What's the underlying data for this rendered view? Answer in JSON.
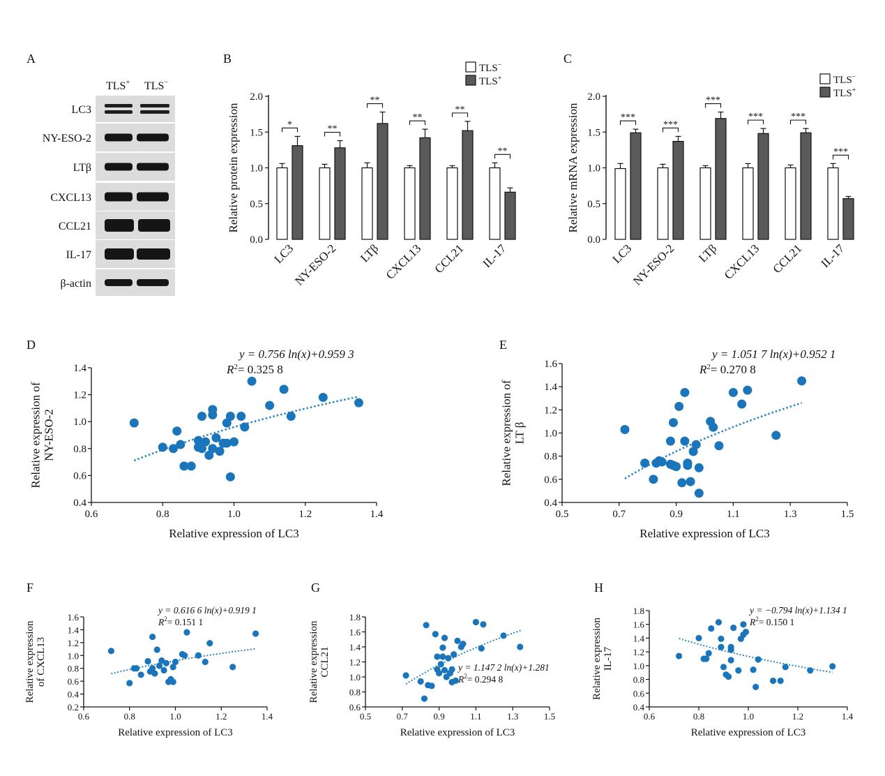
{
  "panels": {
    "A": "A",
    "B": "B",
    "C": "C",
    "D": "D",
    "E": "E",
    "F": "F",
    "G": "G",
    "H": "H"
  },
  "blot": {
    "col_labels": [
      {
        "base": "TLS",
        "sup": "+"
      },
      {
        "base": "TLS",
        "sup": "−"
      }
    ],
    "rows": [
      "LC3",
      "NY-ESO-2",
      "LTβ",
      "CXCL13",
      "CCL21",
      "IL-17",
      "β-actin"
    ]
  },
  "colors": {
    "bar_neg": "#ffffff",
    "bar_pos": "#5a5a5a",
    "scatter": "#1b75bb",
    "trend": "#2a86c9"
  },
  "chart_data": [
    {
      "id": "B",
      "type": "bar",
      "ylabel": "Relative protein expression",
      "ylim": [
        0,
        2.0
      ],
      "yticks": [
        "0.0",
        "0.5",
        "1.0",
        "1.5",
        "2.0"
      ],
      "categories": [
        "LC3",
        "NY-ESO-2",
        "LTβ",
        "CXCL13",
        "CCL21",
        "IL-17"
      ],
      "series": [
        {
          "name": "TLS−",
          "legend_base": "TLS",
          "legend_sup": "−",
          "values": [
            1.0,
            1.0,
            1.0,
            1.0,
            1.0,
            1.0
          ],
          "errors": [
            0.06,
            0.05,
            0.07,
            0.03,
            0.03,
            0.07
          ]
        },
        {
          "name": "TLS+",
          "legend_base": "TLS",
          "legend_sup": "+",
          "values": [
            1.31,
            1.28,
            1.62,
            1.42,
            1.52,
            0.66
          ],
          "errors": [
            0.13,
            0.1,
            0.16,
            0.12,
            0.13,
            0.06
          ]
        }
      ],
      "significance": [
        "*",
        "**",
        "**",
        "**",
        "**",
        "**"
      ],
      "legend": "top-right"
    },
    {
      "id": "C",
      "type": "bar",
      "ylabel": "Relative mRNA expression",
      "ylim": [
        0,
        2.0
      ],
      "yticks": [
        "0.0",
        "0.5",
        "1.0",
        "1.5",
        "2.0"
      ],
      "categories": [
        "LC3",
        "NY-ESO-2",
        "LTβ",
        "CXCL13",
        "CCL21",
        "IL-17"
      ],
      "series": [
        {
          "name": "TLS−",
          "legend_base": "TLS",
          "legend_sup": "−",
          "values": [
            0.99,
            1.0,
            1.0,
            1.0,
            1.0,
            1.0
          ],
          "errors": [
            0.07,
            0.05,
            0.03,
            0.06,
            0.04,
            0.06
          ]
        },
        {
          "name": "TLS+",
          "legend_base": "TLS",
          "legend_sup": "+",
          "values": [
            1.49,
            1.37,
            1.69,
            1.48,
            1.49,
            0.57
          ],
          "errors": [
            0.05,
            0.07,
            0.09,
            0.07,
            0.06,
            0.03
          ]
        }
      ],
      "significance": [
        "***",
        "***",
        "***",
        "***",
        "***",
        "***"
      ],
      "legend": "top-right"
    },
    {
      "id": "D",
      "type": "scatter",
      "xlabel": "Relative expression of LC3",
      "ylabel_lines": [
        "Relative expression of",
        "NY-ESO-2"
      ],
      "xlim": [
        0.6,
        1.4
      ],
      "ylim": [
        0.4,
        1.4
      ],
      "xticks": [
        "0.6",
        "0.8",
        "1.0",
        "1.2",
        "1.4"
      ],
      "yticks": [
        "0.4",
        "0.6",
        "0.8",
        "1.0",
        "1.2",
        "1.4"
      ],
      "equation": "y = 0.756 ln(x)+0.959 3",
      "r2_value": "= 0.325 8",
      "fit": {
        "a": 0.756,
        "b": 0.9593,
        "x_from": 0.72,
        "x_to": 1.35
      },
      "points": [
        [
          0.72,
          0.99
        ],
        [
          0.8,
          0.81
        ],
        [
          0.83,
          0.8
        ],
        [
          0.84,
          0.93
        ],
        [
          0.85,
          0.83
        ],
        [
          0.86,
          0.67
        ],
        [
          0.88,
          0.67
        ],
        [
          0.9,
          0.86
        ],
        [
          0.9,
          0.81
        ],
        [
          0.91,
          1.04
        ],
        [
          0.91,
          0.8
        ],
        [
          0.92,
          0.85
        ],
        [
          0.93,
          0.75
        ],
        [
          0.94,
          0.8
        ],
        [
          0.94,
          1.09
        ],
        [
          0.94,
          1.05
        ],
        [
          0.95,
          0.88
        ],
        [
          0.96,
          0.78
        ],
        [
          0.97,
          0.84
        ],
        [
          0.98,
          0.99
        ],
        [
          0.98,
          0.84
        ],
        [
          0.99,
          0.59
        ],
        [
          0.99,
          1.04
        ],
        [
          1.0,
          0.85
        ],
        [
          1.02,
          1.04
        ],
        [
          1.03,
          0.96
        ],
        [
          1.05,
          1.3
        ],
        [
          1.1,
          1.12
        ],
        [
          1.14,
          1.24
        ],
        [
          1.16,
          1.04
        ],
        [
          1.25,
          1.18
        ],
        [
          1.35,
          1.14
        ]
      ]
    },
    {
      "id": "E",
      "type": "scatter",
      "xlabel": "Relative expression of LC3",
      "ylabel_lines": [
        "Relative expression of",
        "LT β"
      ],
      "xlim": [
        0.5,
        1.5
      ],
      "ylim": [
        0.4,
        1.6
      ],
      "xticks": [
        "0.5",
        "0.7",
        "0.9",
        "1.1",
        "1.3",
        "1.5"
      ],
      "yticks": [
        "0.4",
        "0.6",
        "0.8",
        "1.0",
        "1.2",
        "1.4",
        "1.6"
      ],
      "equation": "y = 1.051 7 ln(x)+0.952 1",
      "r2_value": "= 0.270 8",
      "fit": {
        "a": 1.0517,
        "b": 0.9521,
        "x_from": 0.72,
        "x_to": 1.34
      },
      "points": [
        [
          0.72,
          1.03
        ],
        [
          0.79,
          0.74
        ],
        [
          0.82,
          0.6
        ],
        [
          0.83,
          0.74
        ],
        [
          0.84,
          0.76
        ],
        [
          0.85,
          0.75
        ],
        [
          0.88,
          0.93
        ],
        [
          0.88,
          0.73
        ],
        [
          0.89,
          0.72
        ],
        [
          0.89,
          1.09
        ],
        [
          0.9,
          0.71
        ],
        [
          0.91,
          1.23
        ],
        [
          0.92,
          0.57
        ],
        [
          0.93,
          1.35
        ],
        [
          0.93,
          0.93
        ],
        [
          0.94,
          0.74
        ],
        [
          0.94,
          0.72
        ],
        [
          0.95,
          0.58
        ],
        [
          0.96,
          0.84
        ],
        [
          0.97,
          0.9
        ],
        [
          0.98,
          0.48
        ],
        [
          0.98,
          0.7
        ],
        [
          1.02,
          1.1
        ],
        [
          1.03,
          1.05
        ],
        [
          1.05,
          0.89
        ],
        [
          1.1,
          1.35
        ],
        [
          1.13,
          1.25
        ],
        [
          1.15,
          1.37
        ],
        [
          1.25,
          0.98
        ],
        [
          1.34,
          1.45
        ]
      ]
    },
    {
      "id": "F",
      "type": "scatter",
      "xlabel": "Relative expression of LC3",
      "ylabel_lines": [
        "Relative expression",
        "of CXCL13"
      ],
      "xlim": [
        0.6,
        1.4
      ],
      "ylim": [
        0.2,
        1.6
      ],
      "xticks": [
        "0.6",
        "0.8",
        "1.0",
        "1.2",
        "1.4"
      ],
      "yticks": [
        "0.2",
        "0.4",
        "0.6",
        "0.8",
        "1.0",
        "1.2",
        "1.4",
        "1.6"
      ],
      "equation": "y = 0.616 6 ln(x)+0.919 1",
      "r2_value": "= 0.151 1",
      "fit": {
        "a": 0.6166,
        "b": 0.9191,
        "x_from": 0.72,
        "x_to": 1.35
      },
      "points": [
        [
          0.72,
          1.07
        ],
        [
          0.8,
          0.57
        ],
        [
          0.82,
          0.8
        ],
        [
          0.83,
          0.8
        ],
        [
          0.85,
          0.7
        ],
        [
          0.88,
          0.91
        ],
        [
          0.89,
          0.75
        ],
        [
          0.9,
          0.8
        ],
        [
          0.9,
          1.29
        ],
        [
          0.91,
          0.72
        ],
        [
          0.92,
          1.09
        ],
        [
          0.93,
          0.84
        ],
        [
          0.94,
          0.92
        ],
        [
          0.95,
          0.77
        ],
        [
          0.96,
          0.88
        ],
        [
          0.97,
          0.59
        ],
        [
          0.98,
          0.63
        ],
        [
          0.99,
          0.59
        ],
        [
          0.99,
          0.82
        ],
        [
          1.0,
          0.9
        ],
        [
          1.03,
          1.02
        ],
        [
          1.04,
          1.0
        ],
        [
          1.05,
          1.36
        ],
        [
          1.1,
          1.0
        ],
        [
          1.13,
          0.9
        ],
        [
          1.15,
          1.19
        ],
        [
          1.25,
          0.82
        ],
        [
          1.35,
          1.34
        ]
      ]
    },
    {
      "id": "G",
      "type": "scatter",
      "xlabel": "Relative expression of LC3",
      "ylabel_lines": [
        "Relative expression",
        "CCL21"
      ],
      "xlim": [
        0.5,
        1.5
      ],
      "ylim": [
        0.6,
        1.8
      ],
      "xticks": [
        "0.5",
        "0.7",
        "0.9",
        "1.1",
        "1.3",
        "1.5"
      ],
      "yticks": [
        "0.6",
        "0.8",
        "1.0",
        "1.2",
        "1.4",
        "1.6",
        "1.8"
      ],
      "equation": "y = 1.147 2 ln(x)+1.281",
      "r2_value": "= 0.294 8",
      "fit": {
        "a": 1.1472,
        "b": 1.281,
        "x_from": 0.72,
        "x_to": 1.35
      },
      "points": [
        [
          0.72,
          1.02
        ],
        [
          0.8,
          0.94
        ],
        [
          0.82,
          0.71
        ],
        [
          0.83,
          1.69
        ],
        [
          0.84,
          0.89
        ],
        [
          0.86,
          0.88
        ],
        [
          0.88,
          1.57
        ],
        [
          0.89,
          1.1
        ],
        [
          0.89,
          1.27
        ],
        [
          0.9,
          1.05
        ],
        [
          0.91,
          1.17
        ],
        [
          0.92,
          1.27
        ],
        [
          0.92,
          1.39
        ],
        [
          0.93,
          1.52
        ],
        [
          0.93,
          1.09
        ],
        [
          0.94,
          1.0
        ],
        [
          0.95,
          1.25
        ],
        [
          0.96,
          1.05
        ],
        [
          0.97,
          1.1
        ],
        [
          0.97,
          0.93
        ],
        [
          0.98,
          1.3
        ],
        [
          0.99,
          0.95
        ],
        [
          1.0,
          1.48
        ],
        [
          1.02,
          1.4
        ],
        [
          1.03,
          1.44
        ],
        [
          1.1,
          1.73
        ],
        [
          1.13,
          1.38
        ],
        [
          1.14,
          1.7
        ],
        [
          1.25,
          1.55
        ],
        [
          1.34,
          1.4
        ]
      ]
    },
    {
      "id": "H",
      "type": "scatter",
      "xlabel": "Relative expression of LC3",
      "ylabel_lines": [
        "Relative expression",
        "IL-17"
      ],
      "xlim": [
        0.6,
        1.4
      ],
      "ylim": [
        0.4,
        1.8
      ],
      "xticks": [
        "0.6",
        "0.8",
        "1.0",
        "1.2",
        "1.4"
      ],
      "yticks": [
        "0.4",
        "0.6",
        "0.8",
        "1.0",
        "1.2",
        "1.4",
        "1.6",
        "1.8"
      ],
      "equation": "y = −0.794 ln(x)+1.134 1",
      "r2_value": "= 0.150 1",
      "fit": {
        "a": -0.794,
        "b": 1.1341,
        "x_from": 0.72,
        "x_to": 1.34
      },
      "points": [
        [
          0.72,
          1.14
        ],
        [
          0.8,
          1.4
        ],
        [
          0.82,
          1.1
        ],
        [
          0.83,
          1.1
        ],
        [
          0.84,
          1.18
        ],
        [
          0.85,
          1.54
        ],
        [
          0.88,
          1.63
        ],
        [
          0.89,
          1.39
        ],
        [
          0.89,
          1.27
        ],
        [
          0.9,
          0.98
        ],
        [
          0.91,
          0.87
        ],
        [
          0.92,
          0.84
        ],
        [
          0.93,
          1.27
        ],
        [
          0.93,
          1.23
        ],
        [
          0.93,
          1.08
        ],
        [
          0.94,
          1.55
        ],
        [
          0.96,
          0.93
        ],
        [
          0.97,
          1.39
        ],
        [
          0.98,
          1.45
        ],
        [
          0.98,
          1.6
        ],
        [
          0.99,
          1.49
        ],
        [
          1.02,
          0.94
        ],
        [
          1.03,
          0.69
        ],
        [
          1.04,
          1.09
        ],
        [
          1.1,
          0.78
        ],
        [
          1.13,
          0.78
        ],
        [
          1.15,
          0.98
        ],
        [
          1.25,
          0.93
        ],
        [
          1.34,
          0.99
        ]
      ]
    }
  ]
}
